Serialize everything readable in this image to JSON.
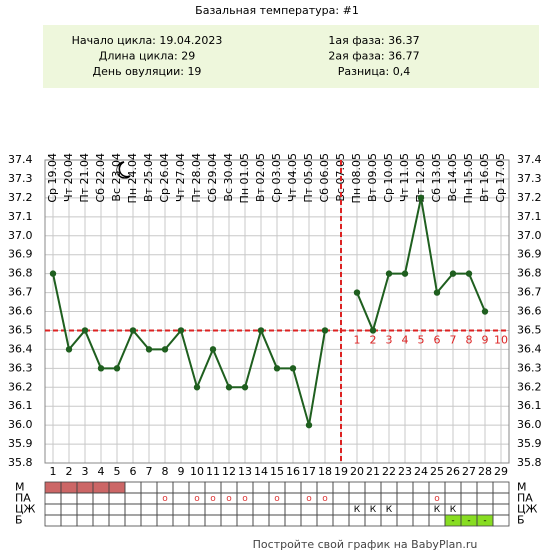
{
  "title": "Базальная температура: #1",
  "info": {
    "left": [
      "Начало цикла: 19.04.2023",
      "Длина цикла: 29",
      "День овуляции: 19"
    ],
    "right": [
      "1ая фаза: 36.37",
      "2ая фаза: 36.77",
      "Разница: 0,4"
    ]
  },
  "chart_data": {
    "type": "line",
    "x": [
      1,
      2,
      3,
      4,
      5,
      6,
      7,
      8,
      9,
      10,
      11,
      12,
      13,
      14,
      15,
      16,
      17,
      18,
      19,
      20,
      21,
      22,
      23,
      24,
      25,
      26,
      27,
      28,
      29
    ],
    "dates": [
      "Ср 19.04",
      "Чт 20.04",
      "Пт 21.04",
      "Сб 22.04",
      "Вс 23.04",
      "Пн 24.04",
      "Вт 25.04",
      "Ср 26.04",
      "Чт 27.04",
      "Пт 28.04",
      "Сб 29.04",
      "Вс 30.04",
      "Пн 01.05",
      "Вт 02.05",
      "Ср 03.05",
      "Чт 04.05",
      "Пт 05.05",
      "Сб 06.05",
      "Вс 07.05",
      "Пн 08.05",
      "Вт 09.05",
      "Ср 10.05",
      "Чт 11.05",
      "Пт 12.05",
      "Сб 13.05",
      "Вс 14.05",
      "Пн 15.05",
      "Вт 16.05",
      "Ср 17.05"
    ],
    "values": [
      36.8,
      36.4,
      36.5,
      36.3,
      36.3,
      36.5,
      36.4,
      36.4,
      36.5,
      36.2,
      36.4,
      36.2,
      36.2,
      36.5,
      36.3,
      36.3,
      36.0,
      36.5,
      null,
      36.7,
      36.5,
      36.8,
      36.8,
      37.2,
      36.7,
      36.8,
      36.8,
      36.6,
      null
    ],
    "color": "#1f5f1f",
    "xlim": [
      0.5,
      29.5
    ],
    "ylim": [
      35.8,
      37.4
    ],
    "yticks": [
      {
        "value": 35.8,
        "label": "35.8"
      },
      35.9,
      {
        "value": 36,
        "label": "36.0"
      },
      36.1,
      36.2,
      36.3,
      36.4,
      36.5,
      36.6,
      36.7,
      36.8,
      36.9,
      {
        "value": 37,
        "label": "37.0"
      },
      37.1,
      37.2,
      37.3,
      37.4
    ],
    "grid": true,
    "coverline": 36.5,
    "ovulation_day": 19,
    "post_ovulation_labels": [
      1,
      2,
      3,
      4,
      5,
      6,
      7,
      8,
      9,
      10
    ],
    "marker_color": "#dd2222"
  },
  "table": {
    "rows": [
      {
        "label": "М",
        "fill": "#cc6666",
        "filled_days": [
          1,
          2,
          3,
          4,
          5
        ]
      },
      {
        "label": "ПА",
        "cells": [
          null,
          null,
          null,
          null,
          null,
          null,
          null,
          "o",
          null,
          "o",
          "o",
          "o",
          "o",
          null,
          "o",
          null,
          "o",
          "o",
          null,
          null,
          null,
          null,
          null,
          null,
          "o",
          null,
          null,
          null,
          null
        ]
      },
      {
        "label": "ЦЖ",
        "cells": [
          null,
          null,
          null,
          null,
          null,
          null,
          null,
          null,
          null,
          null,
          null,
          null,
          null,
          null,
          null,
          null,
          null,
          null,
          null,
          "К",
          "К",
          "К",
          null,
          null,
          "К",
          "К",
          null,
          null,
          null
        ]
      },
      {
        "label": "Б",
        "fill": "#88dd22",
        "filled_days": [
          26,
          27,
          28
        ],
        "cells": [
          null,
          null,
          null,
          null,
          null,
          null,
          null,
          null,
          null,
          null,
          null,
          null,
          null,
          null,
          null,
          null,
          null,
          null,
          null,
          null,
          null,
          null,
          null,
          null,
          null,
          "-",
          "-",
          "-",
          null
        ]
      }
    ]
  },
  "footer": "Постройте свой график на BabyPlan.ru"
}
